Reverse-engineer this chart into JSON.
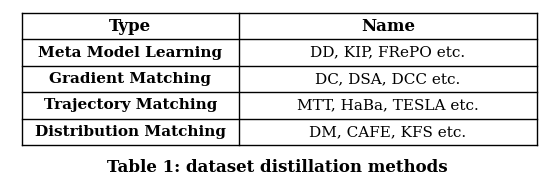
{
  "col_headers": [
    "Type",
    "Name"
  ],
  "rows": [
    [
      "Meta Model Learning",
      "DD, KIP, FRePO etc."
    ],
    [
      "Gradient Matching",
      "DC, DSA, DCC etc."
    ],
    [
      "Trajectory Matching",
      "MTT, HaBa, TESLA etc."
    ],
    [
      "Distribution Matching",
      "DM, CAFE, KFS etc."
    ]
  ],
  "caption": "Table 1: dataset distillation methods",
  "header_fontsize": 12,
  "cell_fontsize": 11,
  "caption_fontsize": 12,
  "background_color": "#ffffff",
  "table_bg": "#ffffff",
  "border_color": "#000000",
  "text_color": "#000000",
  "col_split": 0.42,
  "figsize": [
    5.54,
    1.86
  ],
  "dpi": 100
}
